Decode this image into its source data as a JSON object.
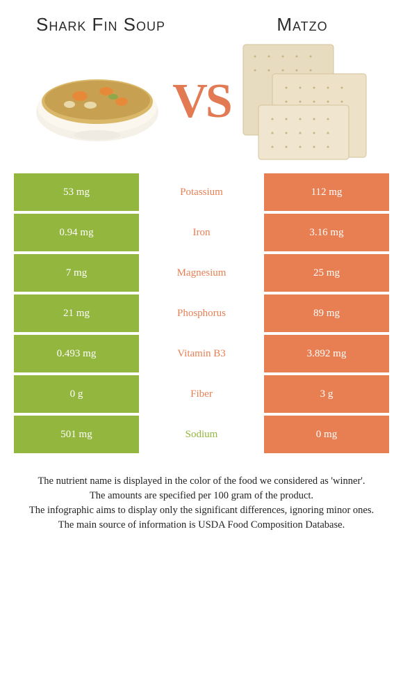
{
  "left_title": "Shark Fin Soup",
  "right_title": "Matzo",
  "vs_text": "VS",
  "colors": {
    "left_bg": "#92b63e",
    "right_bg": "#e77f53",
    "left_text": "#92b63e",
    "right_text": "#e77f53",
    "vs": "#e27a54"
  },
  "rows": [
    {
      "left": "53 mg",
      "label": "Potassium",
      "right": "112 mg",
      "winner": "right"
    },
    {
      "left": "0.94 mg",
      "label": "Iron",
      "right": "3.16 mg",
      "winner": "right"
    },
    {
      "left": "7 mg",
      "label": "Magnesium",
      "right": "25 mg",
      "winner": "right"
    },
    {
      "left": "21 mg",
      "label": "Phosphorus",
      "right": "89 mg",
      "winner": "right"
    },
    {
      "left": "0.493 mg",
      "label": "Vitamin B3",
      "right": "3.892 mg",
      "winner": "right"
    },
    {
      "left": "0 g",
      "label": "Fiber",
      "right": "3 g",
      "winner": "right"
    },
    {
      "left": "501 mg",
      "label": "Sodium",
      "right": "0 mg",
      "winner": "left"
    }
  ],
  "footer_lines": [
    "The nutrient name is displayed in the color of the food we considered as 'winner'.",
    "The amounts are specified per 100 gram of the product.",
    "The infographic aims to display only the significant differences, ignoring minor ones.",
    "The main source of information is USDA Food Composition Database."
  ]
}
